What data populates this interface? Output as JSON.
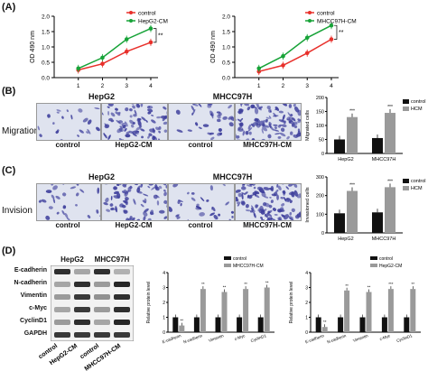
{
  "panels": {
    "A": "(A)",
    "B": "(B)",
    "C": "(C)",
    "D": "(D)"
  },
  "row_labels": {
    "migration": "Migration",
    "invasion": "Invision"
  },
  "cell_names": {
    "hepg2": "HepG2",
    "mhcc97h": "MHCC97H"
  },
  "image_labels": {
    "b": [
      "control",
      "HepG2-CM",
      "control",
      "MHCC97H-CM"
    ],
    "c": [
      "control",
      "HepG2-CM",
      "control",
      "MHCC97H-CM"
    ]
  },
  "blot": {
    "headers": [
      "HepG2",
      "MHCC97H"
    ],
    "rows": [
      "E-cadherin",
      "N-cadherin",
      "Vimentin",
      "c-Myc",
      "CyclinD1",
      "GAPDH"
    ],
    "lanes": [
      "control",
      "HepG2-CM",
      "control",
      "MHCC97H-CM"
    ]
  },
  "colors": {
    "control": "#e8302b",
    "cm": "#17a338",
    "black_bar": "#111111",
    "grey_bar": "#9a9a9a",
    "stain_light": "#dfe3ef",
    "stain_dark": "#3e3f9c"
  },
  "chart_data": [
    {
      "type": "line",
      "x": [
        1,
        2,
        3,
        4
      ],
      "ylabel": "OD 490 nm",
      "ylim": [
        0,
        2.0
      ],
      "yticks": [
        "0.0",
        "0.5",
        "1.0",
        "1.5",
        "2.0"
      ],
      "series": [
        {
          "name": "control",
          "values": [
            0.25,
            0.45,
            0.85,
            1.15
          ]
        },
        {
          "name": "HepG2-CM",
          "values": [
            0.3,
            0.65,
            1.25,
            1.6
          ]
        }
      ],
      "significance": "**"
    },
    {
      "type": "line",
      "x": [
        1,
        2,
        3,
        4
      ],
      "ylabel": "OD 490 nm",
      "ylim": [
        0,
        2.0
      ],
      "yticks": [
        "0.0",
        "0.5",
        "1.0",
        "1.5",
        "2.0"
      ],
      "series": [
        {
          "name": "control",
          "values": [
            0.2,
            0.4,
            0.8,
            1.25
          ]
        },
        {
          "name": "MHCC97H-CM",
          "values": [
            0.3,
            0.7,
            1.3,
            1.7
          ]
        }
      ],
      "significance": "**"
    },
    {
      "type": "bar",
      "categories": [
        "HepG2",
        "MHCC97H"
      ],
      "ylabel": "Migrated cells",
      "ylim": [
        0,
        200
      ],
      "yticks": [
        "0",
        "50",
        "100",
        "150",
        "200"
      ],
      "series": [
        {
          "name": "control",
          "values": [
            50,
            55
          ]
        },
        {
          "name": "HCM",
          "values": [
            130,
            145
          ]
        }
      ],
      "significance": "***"
    },
    {
      "type": "bar",
      "categories": [
        "HepG2",
        "MHCC97H"
      ],
      "ylabel": "Invasioned cells",
      "ylim": [
        0,
        300
      ],
      "yticks": [
        "0",
        "100",
        "200",
        "300"
      ],
      "series": [
        {
          "name": "control",
          "values": [
            105,
            110
          ]
        },
        {
          "name": "HCM",
          "values": [
            225,
            245
          ]
        }
      ],
      "significance": "***"
    },
    {
      "type": "bar",
      "categories": [
        "E-cadherin",
        "N-cadherin",
        "Vimentin",
        "c-Myc",
        "CyclinD1"
      ],
      "ylabel": "Relative protein level",
      "ylim": [
        0,
        4
      ],
      "yticks": [
        "0",
        "1",
        "2",
        "3",
        "4"
      ],
      "series": [
        {
          "name": "control",
          "values": [
            1.0,
            1.0,
            1.0,
            1.0,
            1.0
          ]
        },
        {
          "name": "MHCC97H-CM",
          "values": [
            0.45,
            2.9,
            2.7,
            2.9,
            3.0
          ]
        }
      ],
      "significance": [
        "**",
        "**",
        "**",
        "**",
        "**"
      ]
    },
    {
      "type": "bar",
      "categories": [
        "E-cadherin",
        "N-cadherin",
        "Vimentin",
        "c-Myc",
        "CyclinD1"
      ],
      "ylabel": "Relative protein level",
      "ylim": [
        0,
        4
      ],
      "yticks": [
        "0",
        "1",
        "2",
        "3",
        "4"
      ],
      "series": [
        {
          "name": "control",
          "values": [
            1.0,
            1.0,
            1.0,
            1.0,
            1.0
          ]
        },
        {
          "name": "HepG2-CM",
          "values": [
            0.35,
            2.8,
            2.7,
            2.9,
            2.9
          ]
        }
      ],
      "significance": [
        "**",
        "**",
        "**",
        "***",
        "**"
      ]
    }
  ]
}
